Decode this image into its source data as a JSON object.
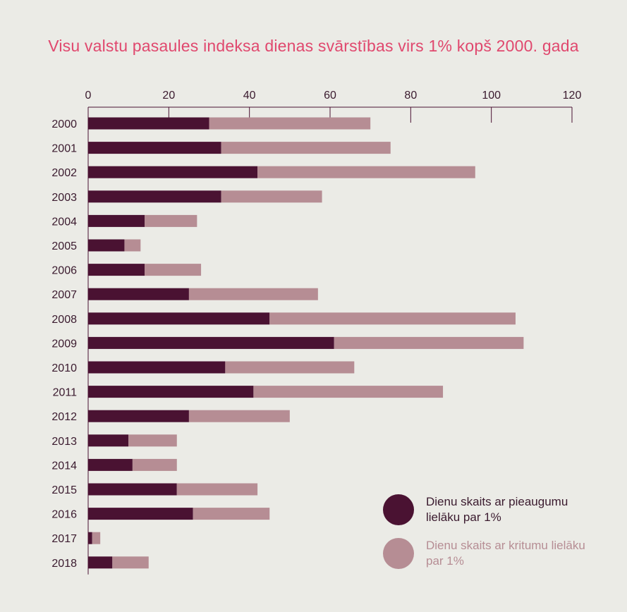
{
  "chart_data": {
    "type": "bar",
    "orientation": "horizontal",
    "stacked": true,
    "title": "Visu valstu pasaules indeksa dienas svārstības virs 1% kopš 2000. gada",
    "xlabel": "",
    "ylabel": "",
    "xlim": [
      0,
      120
    ],
    "xticks": [
      0,
      20,
      40,
      60,
      80,
      100,
      120
    ],
    "x_axis_position": "top",
    "grid": false,
    "legend_position": "bottom-right",
    "categories": [
      "2000",
      "2001",
      "2002",
      "2003",
      "2004",
      "2005",
      "2006",
      "2007",
      "2008",
      "2009",
      "2010",
      "2011",
      "2012",
      "2013",
      "2014",
      "2015",
      "2016",
      "2017",
      "2018"
    ],
    "series": [
      {
        "name": "Dienu skaits ar pieaugumu lielāku par 1%",
        "color": "#4a1232",
        "values": [
          30,
          33,
          42,
          33,
          14,
          9,
          14,
          25,
          45,
          61,
          34,
          41,
          25,
          10,
          11,
          22,
          26,
          1,
          6
        ]
      },
      {
        "name": "Dienu skaits ar kritumu lielāku par 1%",
        "color": "#b68d94",
        "values": [
          40,
          42,
          54,
          25,
          13,
          4,
          14,
          32,
          61,
          47,
          32,
          47,
          25,
          12,
          11,
          20,
          19,
          2,
          9
        ]
      }
    ]
  },
  "colors": {
    "background": "#ebebe6",
    "title": "#e0486e",
    "axis": "#4a1232",
    "label": "#3a1a2e"
  }
}
